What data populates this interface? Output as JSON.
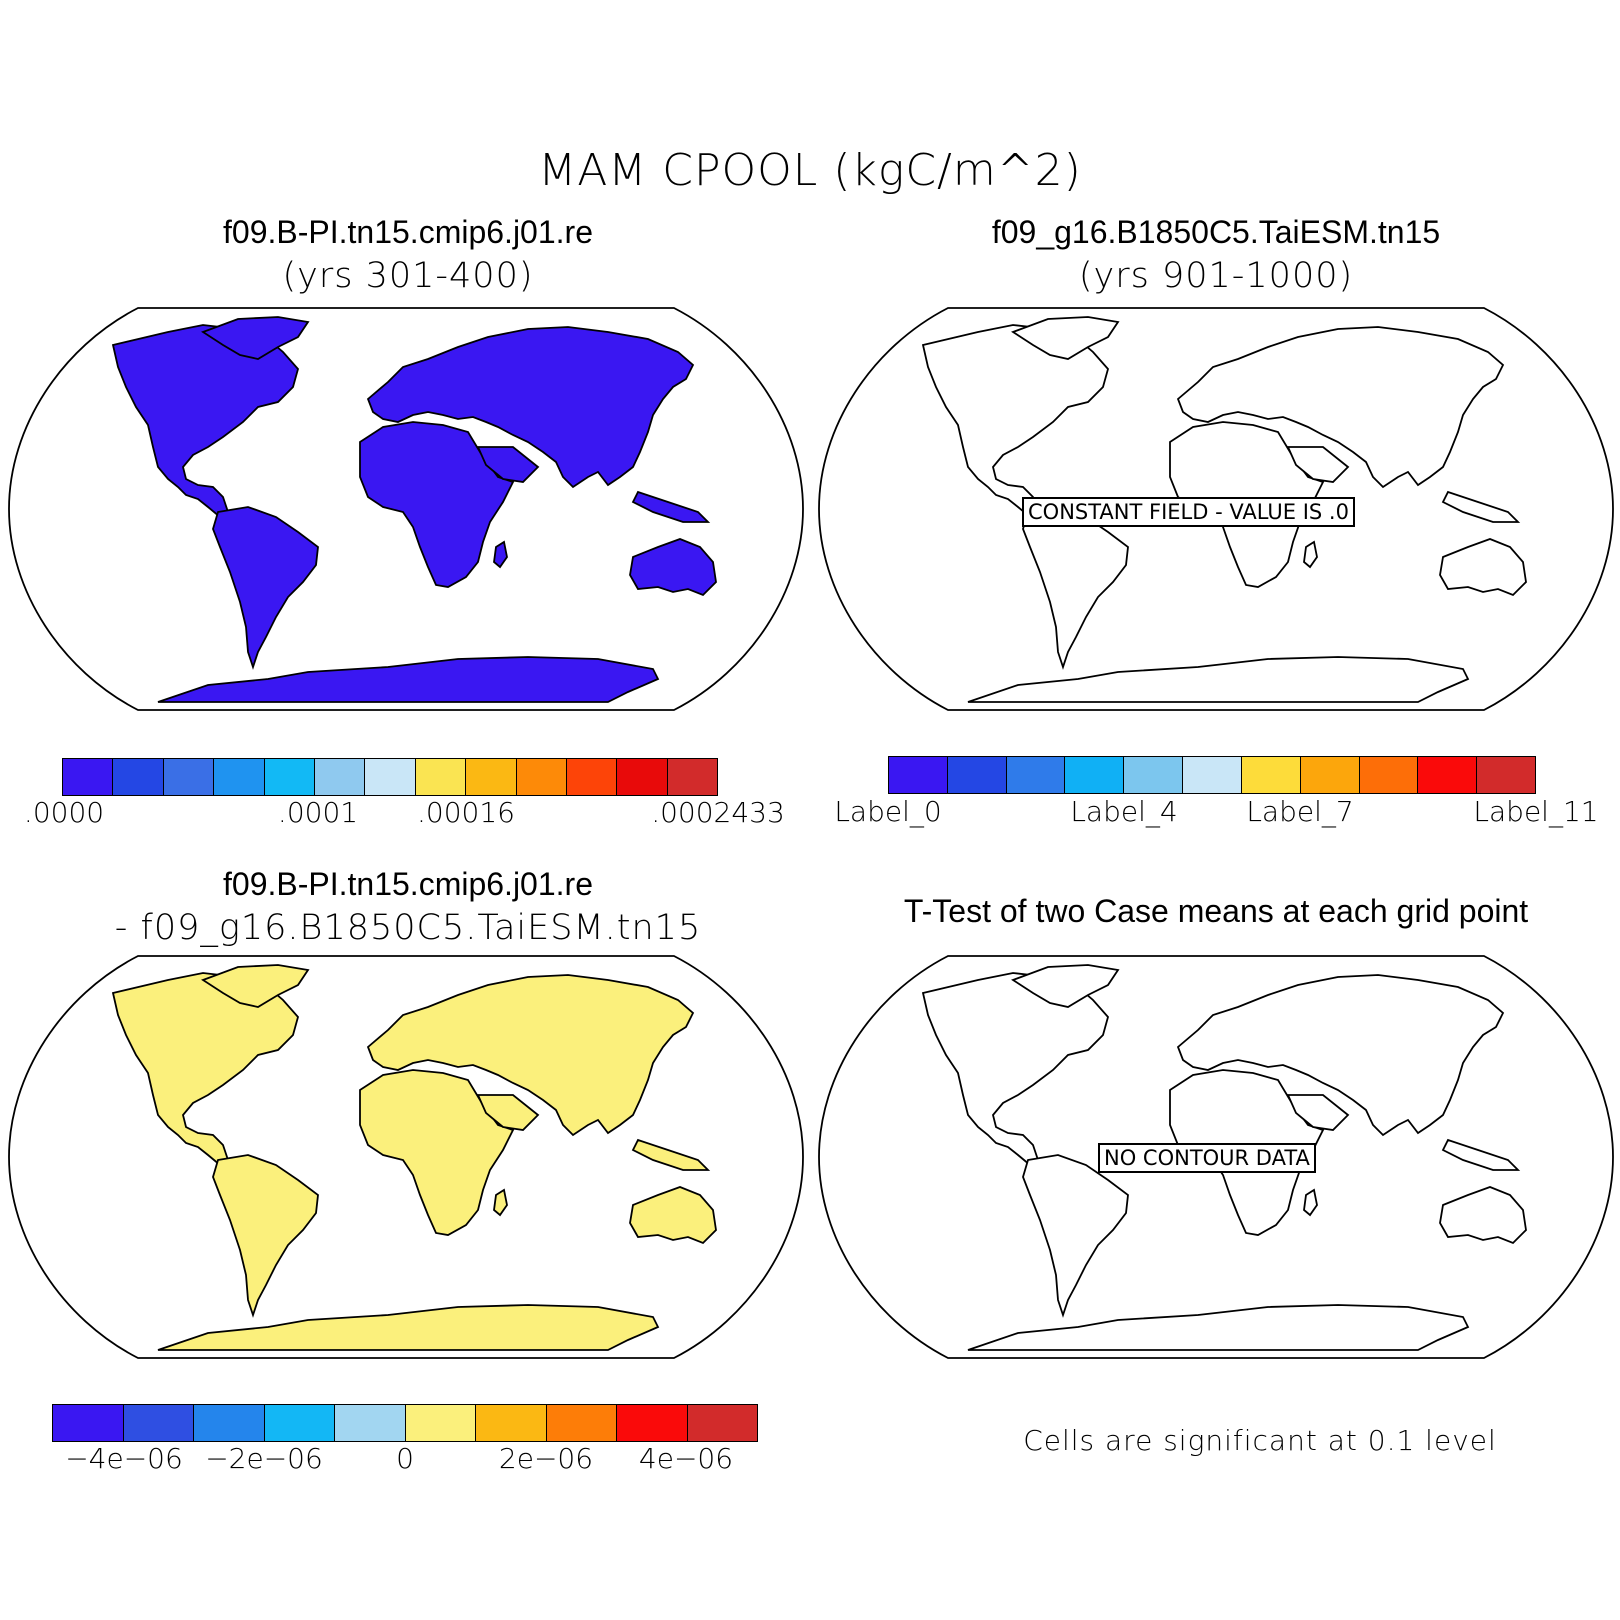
{
  "main_title": "MAM CPOOL (kgC/m^2)",
  "panels": {
    "top_left": {
      "title": "f09.B-PI.tn15.cmip6.j01.re",
      "subtitle": "(yrs 301-400)"
    },
    "top_right": {
      "title": "f09_g16.B1850C5.TaiESM.tn15",
      "subtitle": "(yrs 901-1000)",
      "notice": "CONSTANT FIELD - VALUE IS .0"
    },
    "bottom_left": {
      "title": "f09.B-PI.tn15.cmip6.j01.re",
      "subtitle": "- f09_g16.B1850C5.TaiESM.tn15"
    },
    "bottom_right": {
      "title": "T-Test of two Case means at each grid point",
      "notice": "NO CONTOUR DATA",
      "footnote": "Cells are significant at 0.1 level"
    }
  },
  "colorbars": {
    "top_left": {
      "colors": [
        "#3a17f2",
        "#2447e4",
        "#3a6fe6",
        "#1f93f0",
        "#12b9f5",
        "#8fc9ef",
        "#c9e6f7",
        "#fae452",
        "#fbb813",
        "#fd8a08",
        "#fd4408",
        "#e80a0a",
        "#d22b2b"
      ],
      "labels": [
        ".0000",
        ".0001",
        ".00016",
        ".0002433"
      ]
    },
    "top_right": {
      "colors": [
        "#3a17f2",
        "#2447e4",
        "#2f7bea",
        "#10b0f5",
        "#7cc6ee",
        "#c9e6f7",
        "#fddc3a",
        "#fca60c",
        "#fd6e08",
        "#fa0a0a",
        "#d22b2b"
      ],
      "labels": [
        "Label_0",
        "Label_4",
        "Label_7",
        "Label_11"
      ]
    },
    "bottom_left": {
      "colors": [
        "#3a17f2",
        "#2f4fe2",
        "#2485ec",
        "#13b7f5",
        "#a2d6f1",
        "#fbf07c",
        "#fbb813",
        "#fd7d08",
        "#fa0a0a",
        "#d22b2b"
      ],
      "labels": [
        "−4e−06",
        "−2e−06",
        "0",
        "2e−06",
        "4e−06"
      ]
    }
  },
  "map_fills": {
    "top_left": "#3a17f2",
    "bottom_left": "#fbf07c",
    "empty": "#ffffff"
  }
}
